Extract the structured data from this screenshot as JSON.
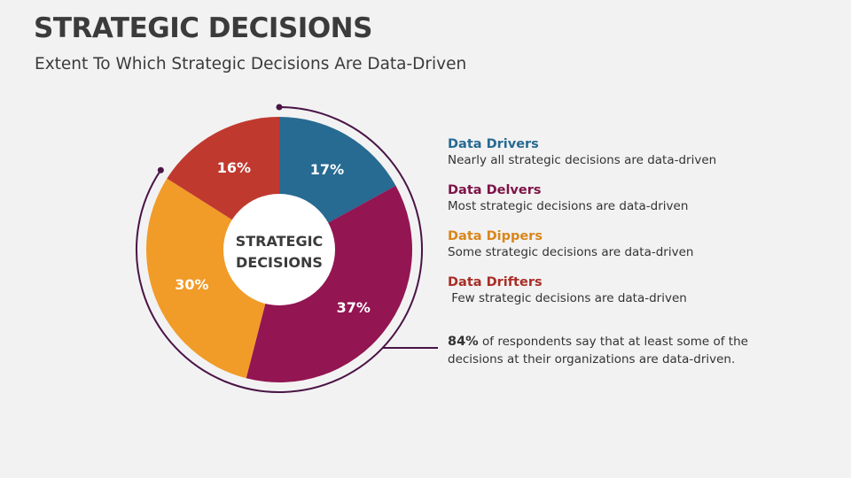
{
  "header": {
    "title": "STRATEGIC DECISIONS",
    "subtitle": "Extent To Which Strategic Decisions Are Data-Driven"
  },
  "chart_data": {
    "type": "pie",
    "center_label": [
      "STRATEGIC",
      "DECISIONS"
    ],
    "categories": [
      "Data Drivers",
      "Data Delvers",
      "Data Dippers",
      "Data Drifters"
    ],
    "values": [
      17,
      37,
      30,
      16
    ],
    "labels": [
      "17%",
      "37%",
      "30%",
      "16%"
    ],
    "colors": [
      "#276a92",
      "#931552",
      "#f19b28",
      "#c0392f"
    ]
  },
  "legend": [
    {
      "title": "Data Drivers",
      "desc": "Nearly all strategic decisions are data-driven",
      "color": "#276a92"
    },
    {
      "title": "Data Delvers",
      "desc": "Most strategic decisions are data-driven",
      "color": "#7d1347"
    },
    {
      "title": "Data Dippers",
      "desc": "Some strategic decisions are data-driven",
      "color": "#d9861a"
    },
    {
      "title": "Data Drifters",
      "desc": " Few strategic decisions are data-driven",
      "color": "#a82e27"
    }
  ],
  "note": {
    "highlight": "84%",
    "text": " of respondents say that at least some of the decisions at their organizations are data-driven."
  },
  "accent_line_color": "#4a1446"
}
